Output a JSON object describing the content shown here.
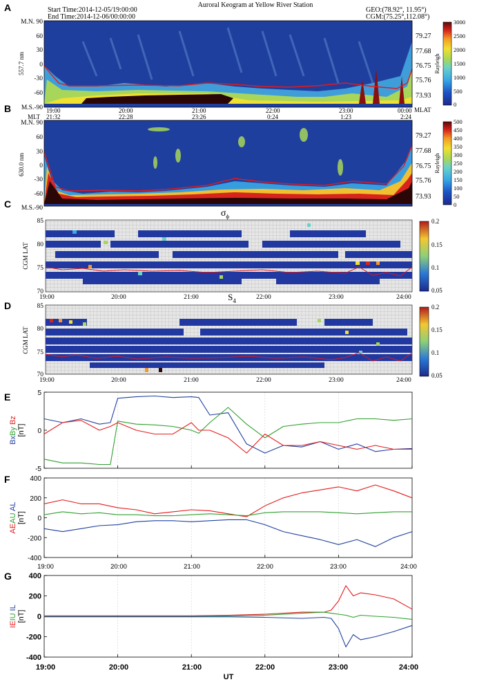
{
  "header": {
    "title": "Auroral Keogram at Yellow River Station",
    "start_time": "Start Time:2014-12-05/19:00:00",
    "end_time": "End  Time:2014-12-06/00:00:00",
    "geo": "GEO:(78.92°, 11.95°)",
    "cgm": "CGM:(75.25°,112.08°)"
  },
  "panel_letters": [
    "A",
    "B",
    "C",
    "D",
    "E",
    "F",
    "G"
  ],
  "keograms": [
    {
      "wavelength_label": "557.7 nm",
      "y_ticks": [
        "M.N. 90",
        "60",
        "30",
        "0",
        "-30",
        "-60",
        "M.S.-90"
      ],
      "mlat_ticks": [
        "79.27",
        "77.68",
        "76.75",
        "75.76",
        "73.93"
      ],
      "mlat_label": "MLAT",
      "colorbar_label": "Rayleigh",
      "colorbar_ticks": [
        "3000",
        "2500",
        "2000",
        "1500",
        "1000",
        "500",
        "0"
      ]
    },
    {
      "wavelength_label": "630.0 nm",
      "y_ticks": [
        "M.N. 90",
        "60",
        "30",
        "0",
        "-30",
        "-60",
        "M.S.-90"
      ],
      "mlat_ticks": [
        "79.27",
        "77.68",
        "76.75",
        "75.76",
        "73.93"
      ],
      "mlat_label": "MLAT",
      "colorbar_label": "Rayleigh",
      "colorbar_ticks": [
        "500",
        "450",
        "400",
        "350",
        "300",
        "250",
        "200",
        "150",
        "100",
        "50",
        "0"
      ]
    }
  ],
  "ut_labels_top": [
    "19:00",
    "20:00",
    "21:00",
    "22:00",
    "23:00",
    "00:00"
  ],
  "mlt_row": {
    "label": "MLT",
    "values": [
      "21:32",
      "22:28",
      "23:26",
      "0:24",
      "1:23",
      "2:24"
    ]
  },
  "scint": [
    {
      "title": "σ",
      "title_sub": "ϕ",
      "ylabel": "CGM LAT",
      "y_ticks": [
        "85",
        "80",
        "75",
        "70"
      ],
      "x_ticks": [
        "19:00",
        "20:00",
        "21:00",
        "22:00",
        "23:00",
        "24:00"
      ],
      "colorbar_ticks": [
        "0.2",
        "0.15",
        "0.1",
        "0.05"
      ]
    },
    {
      "title": "S",
      "title_sub": "4",
      "ylabel": "CGM LAT",
      "y_ticks": [
        "85",
        "80",
        "75",
        "70"
      ],
      "x_ticks": [
        "19:00",
        "20:00",
        "21:00",
        "22:00",
        "23:00",
        "24:00"
      ],
      "colorbar_ticks": [
        "0.2",
        "0.15",
        "0.1",
        "0.05"
      ]
    }
  ],
  "line_panels": [
    {
      "ylabel_parts": [
        {
          "text": "Bx",
          "color": "#1f3f9f"
        },
        {
          "text": "By",
          "color": "#2ea02e"
        },
        {
          "text": " Bz",
          "color": "#e41a1c"
        }
      ],
      "unit": "[nT]",
      "y_ticks": [
        "5",
        "0",
        "-5"
      ]
    },
    {
      "ylabel_parts": [
        {
          "text": "AE",
          "color": "#e41a1c"
        },
        {
          "text": "AU",
          "color": "#2ea02e"
        },
        {
          "text": " AL",
          "color": "#1f3f9f"
        }
      ],
      "unit": "[nT]",
      "y_ticks": [
        "400",
        "200",
        "0",
        "-200",
        "-400"
      ]
    },
    {
      "ylabel_parts": [
        {
          "text": "IE",
          "color": "#e41a1c"
        },
        {
          "text": "IU",
          "color": "#2ea02e"
        },
        {
          "text": " IL",
          "color": "#1f3f9f"
        }
      ],
      "unit": "[nT]",
      "y_ticks": [
        "400",
        "200",
        "0",
        "-200",
        "-400"
      ]
    }
  ],
  "bottom_x_ticks": [
    "19:00",
    "20:00",
    "21:00",
    "22:00",
    "23:00",
    "24:00"
  ],
  "xlabel": "UT",
  "colors": {
    "red": "#e41a1c",
    "green": "#2ea02e",
    "blue": "#1f3f9f",
    "keogram_bg": "#1f3f9f"
  },
  "chart_data": [
    {
      "type": "line",
      "panel": "E",
      "x_range": [
        "19:00",
        "24:00"
      ],
      "ylim": [
        -5,
        5
      ],
      "x": [
        19.0,
        19.25,
        19.5,
        19.75,
        19.9,
        20.0,
        20.25,
        20.5,
        20.75,
        21.0,
        21.1,
        21.25,
        21.5,
        21.75,
        22.0,
        22.25,
        22.5,
        22.75,
        23.0,
        23.25,
        23.5,
        23.75,
        24.0
      ],
      "series": [
        {
          "name": "Bx",
          "color": "#1f3f9f",
          "values": [
            1.5,
            1.0,
            1.5,
            0.8,
            1.0,
            4.2,
            4.4,
            4.5,
            4.3,
            4.4,
            4.3,
            2.0,
            2.3,
            -1.8,
            -3.0,
            -2.0,
            -2.2,
            -1.5,
            -2.5,
            -1.8,
            -2.8,
            -2.5,
            -2.4
          ]
        },
        {
          "name": "By",
          "color": "#2ea02e",
          "values": [
            -3.8,
            -4.3,
            -4.3,
            -4.5,
            -4.5,
            1.2,
            0.8,
            0.7,
            0.5,
            0.0,
            -0.4,
            1.0,
            3.0,
            0.8,
            -1.0,
            0.5,
            0.8,
            1.0,
            1.0,
            1.5,
            1.5,
            1.3,
            1.5
          ]
        },
        {
          "name": "Bz",
          "color": "#e41a1c",
          "values": [
            -0.5,
            1.0,
            1.3,
            0.0,
            0.5,
            1.0,
            0.0,
            -0.5,
            -0.5,
            1.0,
            0.0,
            0.0,
            -1.0,
            -3.0,
            -0.5,
            -2.0,
            -2.0,
            -1.5,
            -2.0,
            -2.5,
            -2.0,
            -2.5,
            -2.5
          ]
        }
      ]
    },
    {
      "type": "line",
      "panel": "F",
      "x_range": [
        "19:00",
        "24:00"
      ],
      "ylim": [
        -400,
        400
      ],
      "x": [
        19.0,
        19.25,
        19.5,
        19.75,
        20.0,
        20.25,
        20.5,
        20.75,
        21.0,
        21.25,
        21.5,
        21.75,
        22.0,
        22.25,
        22.5,
        22.75,
        23.0,
        23.25,
        23.5,
        23.75,
        24.0
      ],
      "series": [
        {
          "name": "AE",
          "color": "#e41a1c",
          "values": [
            140,
            180,
            140,
            140,
            100,
            80,
            40,
            60,
            80,
            70,
            40,
            10,
            120,
            200,
            250,
            280,
            310,
            270,
            330,
            270,
            200
          ]
        },
        {
          "name": "AU",
          "color": "#2ea02e",
          "values": [
            30,
            60,
            40,
            50,
            30,
            30,
            20,
            20,
            30,
            40,
            30,
            20,
            50,
            60,
            60,
            60,
            50,
            40,
            50,
            60,
            60
          ]
        },
        {
          "name": "AL",
          "color": "#1f3f9f",
          "values": [
            -110,
            -140,
            -110,
            -80,
            -70,
            -40,
            -30,
            -30,
            -40,
            -30,
            -20,
            -20,
            -70,
            -140,
            -180,
            -220,
            -270,
            -220,
            -290,
            -200,
            -140
          ]
        }
      ]
    },
    {
      "type": "line",
      "panel": "G",
      "x_range": [
        "19:00",
        "24:00"
      ],
      "ylim": [
        -400,
        400
      ],
      "x": [
        19.0,
        19.5,
        20.0,
        20.5,
        21.0,
        21.5,
        22.0,
        22.5,
        22.8,
        22.9,
        23.0,
        23.1,
        23.2,
        23.3,
        23.5,
        23.75,
        24.0
      ],
      "series": [
        {
          "name": "IE",
          "color": "#e41a1c",
          "values": [
            5,
            5,
            5,
            5,
            5,
            10,
            20,
            40,
            40,
            60,
            150,
            300,
            200,
            230,
            210,
            170,
            70
          ]
        },
        {
          "name": "IU",
          "color": "#2ea02e",
          "values": [
            0,
            0,
            0,
            0,
            0,
            5,
            10,
            30,
            40,
            30,
            20,
            10,
            -10,
            10,
            0,
            -10,
            -30
          ]
        },
        {
          "name": "IL",
          "color": "#1f3f9f",
          "values": [
            -5,
            -5,
            -5,
            -5,
            -5,
            -5,
            -10,
            -20,
            -10,
            -20,
            -120,
            -300,
            -180,
            -230,
            -200,
            -150,
            -90
          ]
        }
      ]
    }
  ]
}
